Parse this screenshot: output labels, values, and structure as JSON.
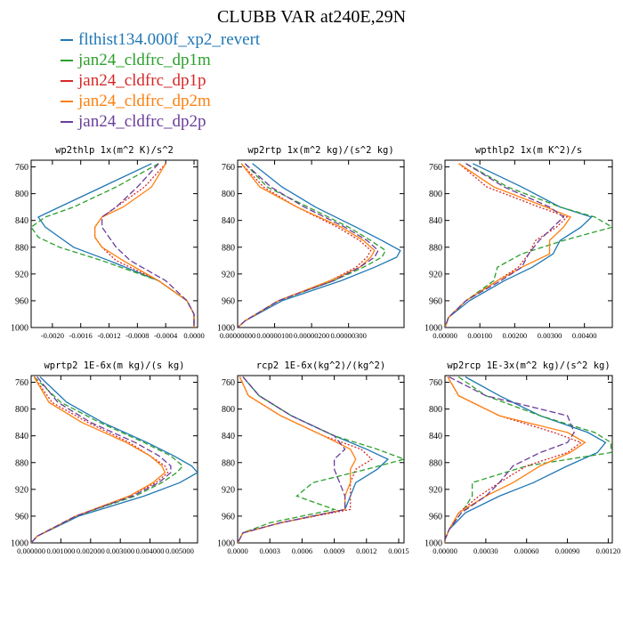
{
  "title": "CLUBB VAR at240E,29N",
  "legend": [
    {
      "name": "flthist134.000f_xp2_revert",
      "color": "#1f77b4",
      "dash": "solid"
    },
    {
      "name": "jan24_cldfrc_dp1m",
      "color": "#2ca02c",
      "dash": "6,3"
    },
    {
      "name": "jan24_cldfrc_dp1p",
      "color": "#d62728",
      "dash": "2,2"
    },
    {
      "name": "jan24_cldfrc_dp2m",
      "color": "#ff7f0e",
      "dash": "solid"
    },
    {
      "name": "jan24_cldfrc_dp2p",
      "color": "#6a3d9a",
      "dash": "7,3"
    }
  ],
  "chart_data": [
    {
      "type": "line",
      "title": "wp2thlp  1x(m^2 K)/s^2",
      "xlim": [
        -0.0023,
        5e-05
      ],
      "ylim": [
        1000,
        750
      ],
      "y_inverted": true,
      "yticks": [
        760,
        800,
        840,
        880,
        920,
        960,
        1000
      ],
      "xticks": [
        -0.002,
        -0.0016,
        -0.0012,
        -0.0008,
        -0.0004,
        0.0
      ],
      "xtick_labels": [
        "-0.0020",
        "-0.0016",
        "-0.0012",
        "-0.0008",
        "-0.0004",
        "0.0000"
      ],
      "y": [
        755,
        790,
        820,
        835,
        850,
        865,
        880,
        900,
        930,
        960,
        980,
        995,
        1000
      ],
      "series": [
        {
          "name": "flthist134.000f_xp2_revert",
          "values": [
            -0.0006,
            -0.0013,
            -0.0019,
            -0.0022,
            -0.0021,
            -0.0019,
            -0.0017,
            -0.0012,
            -0.0005,
            -0.0001,
            0.0,
            0.0,
            0.0
          ]
        },
        {
          "name": "jan24_cldfrc_dp1m",
          "values": [
            -0.0005,
            -0.0011,
            -0.0017,
            -0.0021,
            -0.0023,
            -0.0022,
            -0.0019,
            -0.0013,
            -0.0005,
            -0.0001,
            0.0,
            0.0,
            0.0
          ]
        },
        {
          "name": "jan24_cldfrc_dp1p",
          "values": [
            -0.0004,
            -0.0007,
            -0.0011,
            -0.0013,
            -0.0014,
            -0.0014,
            -0.0013,
            -0.0011,
            -0.0005,
            -0.0001,
            0.0,
            0.0,
            0.0
          ]
        },
        {
          "name": "jan24_cldfrc_dp2m",
          "values": [
            -0.0004,
            -0.0006,
            -0.001,
            -0.0013,
            -0.0014,
            -0.0014,
            -0.0013,
            -0.001,
            -0.0005,
            -0.0001,
            0.0,
            0.0,
            0.0
          ]
        },
        {
          "name": "jan24_cldfrc_dp2p",
          "values": [
            -0.0005,
            -0.0008,
            -0.0011,
            -0.0013,
            -0.0013,
            -0.0012,
            -0.0011,
            -0.0009,
            -0.0004,
            -0.0001,
            0.0,
            0.0,
            0.0
          ]
        }
      ]
    },
    {
      "type": "line",
      "title": "wp2rtp  1x(m^2 kg)/(s^2 kg)",
      "xlim": [
        0,
        4.5e-06
      ],
      "ylim": [
        1000,
        750
      ],
      "y_inverted": true,
      "yticks": [
        760,
        800,
        840,
        880,
        920,
        960,
        1000
      ],
      "xticks": [
        0,
        1e-06,
        2e-06,
        3e-06
      ],
      "xtick_labels": [
        "0.00000000",
        "0.00000100",
        "0.00000200",
        "0.00000300"
      ],
      "y": [
        755,
        790,
        820,
        850,
        870,
        885,
        895,
        910,
        930,
        960,
        990,
        1000
      ],
      "series": [
        {
          "name": "flthist134.000f_xp2_revert",
          "values": [
            4e-07,
            1.2e-06,
            2.1e-06,
            3.2e-06,
            3.9e-06,
            4.4e-06,
            4.3e-06,
            3.7e-06,
            2.8e-06,
            1.2e-06,
            2e-07,
            0
          ]
        },
        {
          "name": "jan24_cldfrc_dp1m",
          "values": [
            2e-07,
            8e-07,
            1.9e-06,
            3e-06,
            3.6e-06,
            4e-06,
            3.9e-06,
            3.4e-06,
            2.6e-06,
            1.1e-06,
            2e-07,
            0
          ]
        },
        {
          "name": "jan24_cldfrc_dp1p",
          "values": [
            1e-07,
            7e-07,
            1.6e-06,
            2.7e-06,
            3.3e-06,
            3.6e-06,
            3.5e-06,
            3.2e-06,
            2.5e-06,
            1.1e-06,
            2e-07,
            0
          ]
        },
        {
          "name": "jan24_cldfrc_dp2m",
          "values": [
            1e-07,
            6e-07,
            1.6e-06,
            2.8e-06,
            3.4e-06,
            3.7e-06,
            3.6e-06,
            3.3e-06,
            2.5e-06,
            1.1e-06,
            2e-07,
            0
          ]
        },
        {
          "name": "jan24_cldfrc_dp2p",
          "values": [
            2e-07,
            9e-07,
            1.8e-06,
            2.9e-06,
            3.5e-06,
            3.8e-06,
            3.7e-06,
            3.3e-06,
            2.6e-06,
            1.1e-06,
            2e-07,
            0
          ]
        }
      ]
    },
    {
      "type": "line",
      "title": "wpthlp2  1x(m K^2)/s",
      "xlim": [
        0,
        0.0048
      ],
      "ylim": [
        1000,
        750
      ],
      "y_inverted": true,
      "yticks": [
        760,
        800,
        840,
        880,
        920,
        960,
        1000
      ],
      "xticks": [
        0,
        0.001,
        0.002,
        0.003,
        0.004
      ],
      "xtick_labels": [
        "0.00000",
        "0.00100",
        "0.00200",
        "0.00300",
        "0.00400"
      ],
      "y": [
        755,
        790,
        820,
        835,
        850,
        870,
        890,
        910,
        930,
        960,
        985,
        1000
      ],
      "series": [
        {
          "name": "flthist134.000f_xp2_revert",
          "values": [
            0.0008,
            0.0022,
            0.0033,
            0.0042,
            0.0039,
            0.0033,
            0.0031,
            0.0025,
            0.0017,
            0.0007,
            0.0001,
            0.0
          ]
        },
        {
          "name": "jan24_cldfrc_dp1m",
          "values": [
            0.0006,
            0.0018,
            0.0033,
            0.0043,
            0.0048,
            0.0034,
            0.0022,
            0.0015,
            0.0014,
            0.0006,
            0.0001,
            0.0
          ]
        },
        {
          "name": "jan24_cldfrc_dp1p",
          "values": [
            0.0004,
            0.0012,
            0.0027,
            0.0035,
            0.0032,
            0.0026,
            0.0024,
            0.0021,
            0.0015,
            0.0006,
            0.0001,
            0.0
          ]
        },
        {
          "name": "jan24_cldfrc_dp2m",
          "values": [
            0.0004,
            0.0014,
            0.0029,
            0.0036,
            0.0034,
            0.003,
            0.003,
            0.0022,
            0.0015,
            0.0006,
            0.0001,
            0.0
          ]
        },
        {
          "name": "jan24_cldfrc_dp2p",
          "values": [
            0.0006,
            0.0017,
            0.003,
            0.0034,
            0.0031,
            0.0027,
            0.0024,
            0.0022,
            0.0016,
            0.0006,
            0.0001,
            0.0
          ]
        }
      ]
    },
    {
      "type": "line",
      "title": "wprtp2  1E-6x(m kg)/(s kg)",
      "xlim": [
        0,
        0.0056
      ],
      "ylim": [
        1000,
        750
      ],
      "y_inverted": true,
      "yticks": [
        760,
        800,
        840,
        880,
        920,
        960,
        1000
      ],
      "xticks": [
        0,
        0.001,
        0.002,
        0.003,
        0.004,
        0.005
      ],
      "xtick_labels": [
        "0.000000",
        "0.001000",
        "0.002000",
        "0.003000",
        "0.004000",
        "0.005000"
      ],
      "y": [
        752,
        790,
        820,
        850,
        870,
        885,
        895,
        910,
        930,
        960,
        990,
        1000
      ],
      "series": [
        {
          "name": "flthist134.000f_xp2_revert",
          "values": [
            0.0003,
            0.0012,
            0.0024,
            0.0039,
            0.0048,
            0.0054,
            0.0056,
            0.005,
            0.0038,
            0.0016,
            0.0002,
            0.0
          ]
        },
        {
          "name": "jan24_cldfrc_dp1m",
          "values": [
            0.0001,
            0.001,
            0.0023,
            0.0038,
            0.0047,
            0.0051,
            0.0049,
            0.0044,
            0.0035,
            0.0015,
            0.0002,
            0.0
          ]
        },
        {
          "name": "jan24_cldfrc_dp1p",
          "values": [
            0.0001,
            0.0007,
            0.0019,
            0.0033,
            0.004,
            0.0045,
            0.0046,
            0.0042,
            0.0033,
            0.0015,
            0.0002,
            0.0
          ]
        },
        {
          "name": "jan24_cldfrc_dp2m",
          "values": [
            0.0001,
            0.0006,
            0.0017,
            0.0032,
            0.004,
            0.0044,
            0.0045,
            0.0041,
            0.0033,
            0.0015,
            0.0002,
            0.0
          ]
        },
        {
          "name": "jan24_cldfrc_dp2p",
          "values": [
            0.0002,
            0.0009,
            0.002,
            0.0035,
            0.0043,
            0.0047,
            0.0047,
            0.0043,
            0.0034,
            0.0015,
            0.0002,
            0.0
          ]
        }
      ]
    },
    {
      "type": "line",
      "title": "rcp2  1E-6x(kg^2)/(kg^2)",
      "xlim": [
        0,
        0.00155
      ],
      "ylim": [
        1000,
        750
      ],
      "y_inverted": true,
      "yticks": [
        760,
        800,
        840,
        880,
        920,
        960,
        1000
      ],
      "xticks": [
        0,
        0.0003,
        0.0006,
        0.0009,
        0.0012,
        0.0015
      ],
      "xtick_labels": [
        "0.0000",
        "0.0003",
        "0.0006",
        "0.0009",
        "0.0012",
        "0.0015"
      ],
      "y": [
        752,
        780,
        810,
        840,
        860,
        875,
        890,
        910,
        930,
        950,
        970,
        985,
        1000
      ],
      "series": [
        {
          "name": "flthist134.000f_xp2_revert",
          "values": [
            5e-05,
            0.0002,
            0.0005,
            0.0009,
            0.0012,
            0.0014,
            0.0013,
            0.0011,
            0.00105,
            0.001,
            0.0004,
            5e-05,
            0.0
          ]
        },
        {
          "name": "jan24_cldfrc_dp1m",
          "values": [
            5e-05,
            0.0002,
            0.0005,
            0.0009,
            0.0013,
            0.00155,
            0.0012,
            0.0007,
            0.00055,
            0.0009,
            0.0003,
            5e-05,
            0.0
          ]
        },
        {
          "name": "jan24_cldfrc_dp1p",
          "values": [
            2e-05,
            0.0001,
            0.0004,
            0.0008,
            0.00115,
            0.00125,
            0.0011,
            0.00105,
            0.00105,
            0.00105,
            0.0004,
            5e-05,
            0.0
          ]
        },
        {
          "name": "jan24_cldfrc_dp2m",
          "values": [
            2e-05,
            0.0001,
            0.0004,
            0.0008,
            0.00105,
            0.0011,
            0.00105,
            0.00105,
            0.001,
            0.001,
            0.0004,
            5e-05,
            0.0
          ]
        },
        {
          "name": "jan24_cldfrc_dp2p",
          "values": [
            5e-05,
            0.0002,
            0.0005,
            0.0009,
            0.001,
            0.0009,
            0.0009,
            0.00095,
            0.001,
            0.001,
            0.0004,
            5e-05,
            0.0
          ]
        }
      ]
    },
    {
      "type": "line",
      "title": "wp2rcp  1E-3x(m^2 kg)/(s^2 kg)",
      "xlim": [
        0,
        0.00123
      ],
      "ylim": [
        1000,
        750
      ],
      "y_inverted": true,
      "yticks": [
        760,
        800,
        840,
        880,
        920,
        960,
        1000
      ],
      "xticks": [
        0,
        0.0003,
        0.0006,
        0.0009,
        0.0012
      ],
      "xtick_labels": [
        "0.00000",
        "0.00030",
        "0.00060",
        "0.00090",
        "0.00120"
      ],
      "y": [
        752,
        780,
        810,
        835,
        850,
        865,
        885,
        910,
        930,
        955,
        980,
        995,
        1000
      ],
      "series": [
        {
          "name": "flthist134.000f_xp2_revert",
          "values": [
            0.00015,
            0.0004,
            0.0007,
            0.00105,
            0.00118,
            0.00112,
            0.0009,
            0.00065,
            0.0004,
            0.00015,
            3e-05,
            0.0,
            0.0
          ]
        },
        {
          "name": "jan24_cldfrc_dp1m",
          "values": [
            0.0001,
            0.0003,
            0.0007,
            0.0011,
            0.00122,
            0.00122,
            0.0006,
            0.0002,
            0.0002,
            0.00012,
            3e-05,
            0.0,
            0.0
          ]
        },
        {
          "name": "jan24_cldfrc_dp1p",
          "values": [
            2e-05,
            0.0001,
            0.0004,
            0.0008,
            0.001,
            0.0009,
            0.0006,
            0.0004,
            0.00025,
            0.0001,
            3e-05,
            0.0,
            0.0
          ]
        },
        {
          "name": "jan24_cldfrc_dp2m",
          "values": [
            2e-05,
            0.0001,
            0.0004,
            0.0009,
            0.00103,
            0.00092,
            0.0007,
            0.0005,
            0.0003,
            0.0001,
            3e-05,
            0.0,
            0.0
          ]
        },
        {
          "name": "jan24_cldfrc_dp2p",
          "values": [
            3e-05,
            0.0003,
            0.0009,
            0.00095,
            0.0009,
            0.0007,
            0.0005,
            0.0004,
            0.0003,
            0.00012,
            3e-05,
            0.0,
            0.0
          ]
        }
      ]
    }
  ]
}
